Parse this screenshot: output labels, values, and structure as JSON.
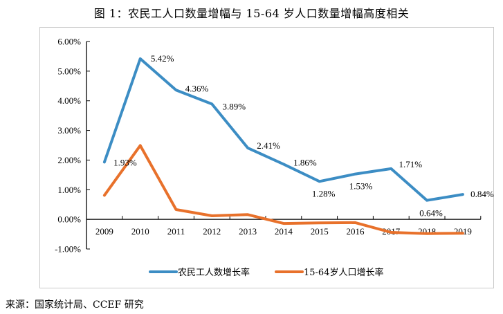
{
  "title": "图 1：农民工人口数量增幅与 15-64 岁人口数量增幅高度相关",
  "source": "来源：国家统计局、CCEF 研究",
  "chart_data": {
    "type": "line",
    "title": "图 1：农民工人口数量增幅与 15-64 岁人口数量增幅高度相关",
    "xlabel": "",
    "ylabel": "",
    "x": [
      "2009",
      "2010",
      "2011",
      "2012",
      "2013",
      "2014",
      "2015",
      "2016",
      "2017",
      "2018",
      "2019"
    ],
    "ylim": [
      -1.0,
      6.0
    ],
    "yticks": [
      "6.00%",
      "5.00%",
      "4.00%",
      "3.00%",
      "2.00%",
      "1.00%",
      "0.00%",
      "-1.00%"
    ],
    "ytick_values": [
      6,
      5,
      4,
      3,
      2,
      1,
      0,
      -1
    ],
    "grid": false,
    "legend_position": "bottom",
    "series": [
      {
        "name": "农民工人数增长率",
        "color": "#3C8DC4",
        "values": [
          1.93,
          5.42,
          4.36,
          3.89,
          2.41,
          1.86,
          1.28,
          1.53,
          1.71,
          0.64,
          0.84
        ],
        "labels": [
          "1.93%",
          "5.42%",
          "4.36%",
          "3.89%",
          "2.41%",
          "1.86%",
          "1.28%",
          "1.53%",
          "1.71%",
          "0.64%",
          "0.84%"
        ]
      },
      {
        "name": "15-64岁人口增长率",
        "color": "#E8712B",
        "values": [
          0.81,
          2.49,
          0.33,
          0.12,
          0.16,
          -0.14,
          -0.12,
          -0.11,
          -0.44,
          -0.48,
          -0.47
        ],
        "labels": []
      }
    ]
  }
}
